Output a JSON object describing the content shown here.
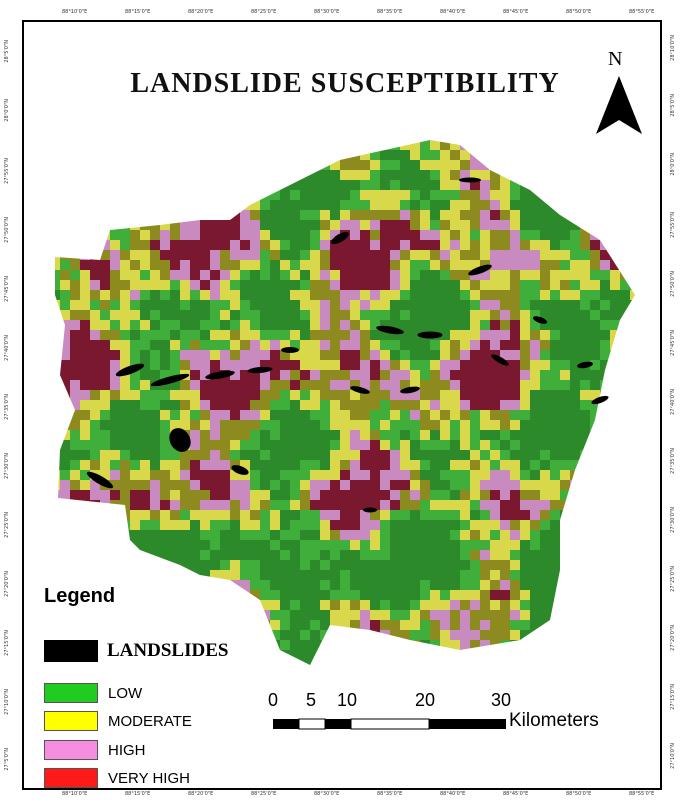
{
  "title": "LANDSLIDE SUSCEPTIBILITY",
  "north_label": "N",
  "graticule": {
    "longitude_ticks": [
      "88°10'0\"E",
      "88°15'0\"E",
      "88°20'0\"E",
      "88°25'0\"E",
      "88°30'0\"E",
      "88°35'0\"E",
      "88°40'0\"E",
      "88°45'0\"E",
      "88°50'0\"E",
      "88°55'0\"E"
    ],
    "latitude_ticks_left": [
      "28°5'0\"N",
      "28°0'0\"N",
      "27°55'0\"N",
      "27°50'0\"N",
      "27°45'0\"N",
      "27°40'0\"N",
      "27°35'0\"N",
      "27°30'0\"N",
      "27°25'0\"N",
      "27°20'0\"N",
      "27°15'0\"N",
      "27°10'0\"N",
      "27°5'0\"N"
    ],
    "latitude_ticks_right": [
      "28°10'0\"N",
      "28°5'0\"N",
      "28°0'0\"N",
      "27°55'0\"N",
      "27°50'0\"N",
      "27°45'0\"N",
      "27°40'0\"N",
      "27°35'0\"N",
      "27°30'0\"N",
      "27°25'0\"N",
      "27°20'0\"N",
      "27°15'0\"N",
      "27°10'0\"N"
    ]
  },
  "legend": {
    "title": "Legend",
    "landslides_label": "LANDSLIDES",
    "classes": [
      {
        "label": "LOW",
        "color": "#1fcc1f"
      },
      {
        "label": "MODERATE",
        "color": "#ffff00"
      },
      {
        "label": "HIGH",
        "color": "#f58ee0"
      },
      {
        "label": "VERY HIGH",
        "color": "#ff1a1a"
      }
    ],
    "landslide_color": "#000000"
  },
  "map_colors": {
    "low": "#3fae3a",
    "low_dark": "#2d8a2a",
    "moderate": "#d8d84a",
    "moderate_olive": "#8d8a20",
    "high": "#c98ac0",
    "very_high": "#7a1830"
  },
  "scale_bar": {
    "labels": [
      "0",
      "5",
      "10",
      "20",
      "30"
    ],
    "unit": "Kilometers"
  }
}
